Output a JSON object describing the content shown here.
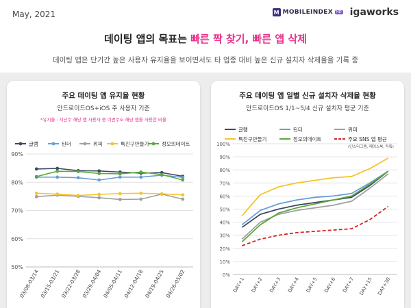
{
  "header": {
    "date": "May, 2021",
    "brand_mobileindex": "MOBILEINDEX",
    "brand_mobileindex_badge": "HD",
    "brand_igaworks": "igaworks"
  },
  "headline": {
    "prefix": "데이팅 앱의 목표는 ",
    "highlight": "빠른 짝 찾기, 빠른 앱 삭제"
  },
  "subline": "데이팅 앱은 단기간 높은 사용자 유지율을 보이면서도 타 업종 대비 높은 신규 설치자 삭제율을 기록 중",
  "left_panel": {
    "title": "주요 데이팅 앱 유지율 현황",
    "subtitle": "안드로이드OS+iOS 주 사용자 기준",
    "note": "*유지율 : 지난주 해당 앱 사용자 중 이번주도 해당 앱을 사용한 비율"
  },
  "right_panel": {
    "title": "주요 데이팅 앱 일별 신규 설치자 삭제율 현황",
    "subtitle": "안드로이드OS 1/1~5/4 신규 설치자 평균 기준"
  },
  "chart_data": [
    {
      "type": "line",
      "title": "주요 데이팅 앱 유지율 현황",
      "categories": [
        "03/08-03/14",
        "03/15-03/21",
        "03/22-03/28",
        "03/29-04/04",
        "04/05-04/11",
        "04/12-04/18",
        "04/19-04/25",
        "04/26-05/02"
      ],
      "y_ticks": [
        "50%",
        "60%",
        "70%",
        "80%",
        "90%"
      ],
      "ylim": [
        50,
        90
      ],
      "grid": true,
      "legend_position": "top",
      "series": [
        {
          "name": "글램",
          "color": "#3d4a63",
          "marker": "circle",
          "values": [
            84.7,
            84.9,
            84.1,
            84.0,
            83.6,
            83.2,
            83.4,
            82.1
          ]
        },
        {
          "name": "틴더",
          "color": "#6a9ed8",
          "marker": "circle",
          "values": [
            81.8,
            81.8,
            81.6,
            80.8,
            81.8,
            81.8,
            82.5,
            81.7
          ]
        },
        {
          "name": "위피",
          "color": "#a0a0a0",
          "marker": "circle",
          "values": [
            74.9,
            75.4,
            75.0,
            74.5,
            73.9,
            74.0,
            75.8,
            74.0
          ]
        },
        {
          "name": "특친구만들기",
          "color": "#f5c52c",
          "marker": "circle",
          "values": [
            76.1,
            75.8,
            75.3,
            75.7,
            76.0,
            76.1,
            75.9,
            75.5
          ]
        },
        {
          "name": "정오의데이트",
          "color": "#5aa83c",
          "marker": "circle",
          "values": [
            82.0,
            83.9,
            83.8,
            83.1,
            83.0,
            83.6,
            82.7,
            80.8
          ]
        }
      ]
    },
    {
      "type": "line",
      "title": "주요 데이팅 앱 일별 신규 설치자 삭제율 현황",
      "categories": [
        "DAY+1",
        "DAY+2",
        "DAY+3",
        "DAY+4",
        "DAY+5",
        "DAY+6",
        "DAY+7",
        "DAY+15",
        "DAY+30"
      ],
      "y_ticks": [
        "0%",
        "10%",
        "20%",
        "30%",
        "40%",
        "50%",
        "60%",
        "70%",
        "80%",
        "90%",
        "100%"
      ],
      "ylim": [
        0,
        100
      ],
      "grid": true,
      "legend_position": "top",
      "series": [
        {
          "name": "글램",
          "color": "#3d4a63",
          "dashed": false,
          "values": [
            36,
            46,
            50,
            53,
            55,
            57,
            59,
            68,
            79
          ]
        },
        {
          "name": "틴더",
          "color": "#6a9ed8",
          "dashed": false,
          "values": [
            38,
            49,
            54,
            57,
            59,
            60,
            62,
            70,
            79
          ]
        },
        {
          "name": "위피",
          "color": "#a0a0a0",
          "dashed": false,
          "values": [
            27,
            40,
            46,
            49,
            51,
            53,
            56,
            66,
            77
          ]
        },
        {
          "name": "특친구만들기",
          "color": "#f5c52c",
          "dashed": false,
          "values": [
            45,
            61,
            67,
            70,
            72,
            74,
            75,
            81,
            89
          ]
        },
        {
          "name": "정오의데이트",
          "color": "#5aa83c",
          "dashed": false,
          "values": [
            25,
            38,
            47,
            51,
            54,
            57,
            60,
            69,
            79
          ]
        },
        {
          "name": "주요 SNS 앱 평균",
          "note": "(인스타그램, 페이스북, 틱톡)",
          "color": "#d42222",
          "dashed": true,
          "values": [
            22,
            27,
            30,
            32,
            33,
            34,
            35,
            42,
            52
          ]
        }
      ]
    }
  ]
}
